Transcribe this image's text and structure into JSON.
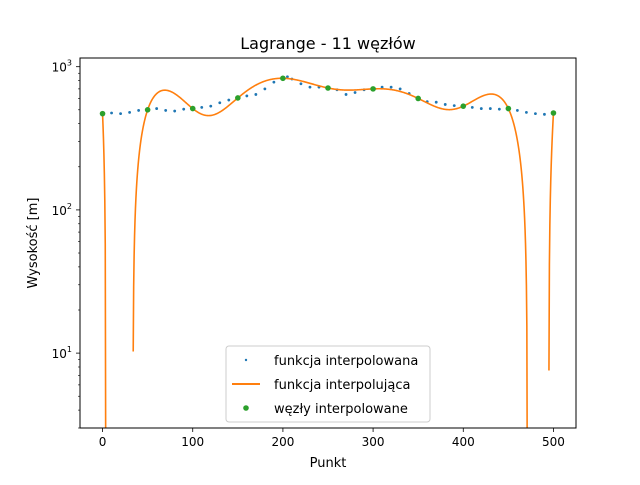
{
  "chart_data": {
    "type": "line",
    "title": "Lagrange - 11 węzłów",
    "xlabel": "Punkt",
    "ylabel": "Wysokość [m]",
    "xlim": [
      -25,
      525
    ],
    "ylim": [
      3,
      1150
    ],
    "yscale": "log",
    "grid": false,
    "legend_position": "lower center",
    "x_ticks": [
      0,
      100,
      200,
      300,
      400,
      500
    ],
    "y_ticks": [
      10,
      100,
      1000
    ],
    "y_tick_labels": [
      {
        "base": "10",
        "exp": "1"
      },
      {
        "base": "10",
        "exp": "2"
      },
      {
        "base": "10",
        "exp": "3"
      }
    ],
    "series": [
      {
        "name": "funkcja interpolowana",
        "style": "points",
        "color": "#1f77b4",
        "x": [
          0,
          10,
          20,
          30,
          40,
          50,
          60,
          70,
          80,
          90,
          100,
          110,
          120,
          130,
          140,
          150,
          160,
          170,
          180,
          190,
          200,
          205,
          210,
          220,
          230,
          240,
          250,
          260,
          270,
          280,
          290,
          300,
          310,
          320,
          330,
          340,
          350,
          360,
          370,
          380,
          390,
          400,
          410,
          420,
          430,
          440,
          450,
          460,
          470,
          480,
          490,
          500
        ],
        "y": [
          470,
          475,
          470,
          480,
          495,
          500,
          510,
          495,
          490,
          505,
          510,
          520,
          530,
          560,
          585,
          600,
          625,
          640,
          700,
          780,
          830,
          850,
          820,
          760,
          720,
          720,
          710,
          690,
          640,
          660,
          690,
          700,
          720,
          720,
          700,
          650,
          600,
          570,
          565,
          545,
          535,
          530,
          520,
          510,
          510,
          505,
          500,
          495,
          480,
          470,
          465,
          470
        ]
      },
      {
        "name": "funkcja interpolująca",
        "style": "line",
        "color": "#ff7f0e",
        "nodes_x": [
          0,
          50,
          100,
          150,
          200,
          250,
          300,
          350,
          400,
          450,
          500
        ],
        "nodes_y": [
          470,
          500,
          510,
          605,
          830,
          710,
          700,
          600,
          530,
          510,
          475
        ]
      },
      {
        "name": "węzły interpolowane",
        "style": "markers",
        "color": "#2ca02c",
        "x": [
          0,
          50,
          100,
          150,
          200,
          250,
          300,
          350,
          400,
          450,
          500
        ],
        "y": [
          470,
          500,
          510,
          605,
          830,
          710,
          700,
          600,
          530,
          510,
          475
        ]
      }
    ]
  }
}
